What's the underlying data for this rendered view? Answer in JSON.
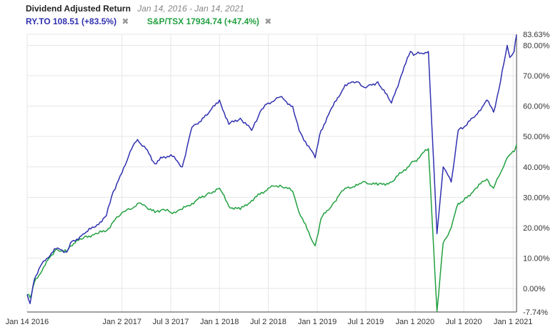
{
  "header": {
    "title": "Dividend Adjusted Return",
    "date_range": "Jan 14, 2016 - Jan 14, 2021",
    "legend": [
      {
        "label": "RY.TO 108.51 (+83.5%)",
        "color": "#3030b0",
        "remove_icon": "close-icon"
      },
      {
        "label": "S&P/TSX 17934.74 (+47.4%)",
        "color": "#22a040",
        "remove_icon": "close-icon"
      }
    ],
    "remove_glyph": "✖"
  },
  "chart_data": {
    "type": "line",
    "x_tick_labels": [
      "Jan 14 2016",
      "Jan 2 2017",
      "Jul 3 2017",
      "Jan 1 2018",
      "Jul 2 2018",
      "Jan 1 2019",
      "Jul 1 2019",
      "Jan 1 2020",
      "Jul 1 2020",
      "Jan 1 2021"
    ],
    "x_tick_dates": [
      "2016-01-14",
      "2017-01-02",
      "2017-07-03",
      "2018-01-01",
      "2018-07-02",
      "2019-01-01",
      "2019-07-01",
      "2020-01-01",
      "2020-07-01",
      "2021-01-01"
    ],
    "x_range": [
      "2016-01-14",
      "2021-01-14"
    ],
    "y_tick_labels": [
      "83.63%",
      "80.00%",
      "70.00%",
      "60.00%",
      "50.00%",
      "40.00%",
      "30.00%",
      "20.00%",
      "10.00%",
      "0.00%",
      "-7.74%"
    ],
    "y_tick_values": [
      83.63,
      80,
      70,
      60,
      50,
      40,
      30,
      20,
      10,
      0,
      -7.74
    ],
    "ylim": [
      -7.74,
      83.63
    ],
    "y_unit": "%",
    "grid": true,
    "series": [
      {
        "name": "RY.TO",
        "color": "#3030b0",
        "points": [
          [
            "2016-01-14",
            -2
          ],
          [
            "2016-01-25",
            -5
          ],
          [
            "2016-02-10",
            3
          ],
          [
            "2016-03-15",
            9
          ],
          [
            "2016-05-01",
            13
          ],
          [
            "2016-06-10",
            12
          ],
          [
            "2016-06-24",
            15
          ],
          [
            "2016-08-15",
            18
          ],
          [
            "2016-10-01",
            21
          ],
          [
            "2016-11-05",
            24
          ],
          [
            "2016-12-01",
            32
          ],
          [
            "2017-01-02",
            38
          ],
          [
            "2017-02-01",
            45
          ],
          [
            "2017-03-01",
            49
          ],
          [
            "2017-04-01",
            46
          ],
          [
            "2017-05-05",
            41
          ],
          [
            "2017-06-01",
            43
          ],
          [
            "2017-07-03",
            44
          ],
          [
            "2017-08-15",
            40
          ],
          [
            "2017-09-20",
            53
          ],
          [
            "2017-11-15",
            57
          ],
          [
            "2018-01-01",
            62
          ],
          [
            "2018-02-05",
            54
          ],
          [
            "2018-03-20",
            56
          ],
          [
            "2018-05-01",
            52
          ],
          [
            "2018-06-01",
            58
          ],
          [
            "2018-07-02",
            61
          ],
          [
            "2018-08-15",
            63
          ],
          [
            "2018-10-01",
            60
          ],
          [
            "2018-10-25",
            52
          ],
          [
            "2018-12-24",
            43
          ],
          [
            "2019-01-15",
            52
          ],
          [
            "2019-03-01",
            60
          ],
          [
            "2019-04-15",
            67
          ],
          [
            "2019-06-01",
            68
          ],
          [
            "2019-07-01",
            66
          ],
          [
            "2019-08-15",
            68
          ],
          [
            "2019-10-05",
            61
          ],
          [
            "2019-11-10",
            70
          ],
          [
            "2019-12-15",
            78
          ],
          [
            "2020-01-01",
            77
          ],
          [
            "2020-02-20",
            78
          ],
          [
            "2020-03-23",
            18
          ],
          [
            "2020-04-15",
            40
          ],
          [
            "2020-05-15",
            35
          ],
          [
            "2020-06-10",
            52
          ],
          [
            "2020-07-01",
            53
          ],
          [
            "2020-08-15",
            57
          ],
          [
            "2020-09-25",
            62
          ],
          [
            "2020-10-20",
            58
          ],
          [
            "2020-11-15",
            68
          ],
          [
            "2020-12-10",
            80
          ],
          [
            "2020-12-20",
            76
          ],
          [
            "2021-01-05",
            78
          ],
          [
            "2021-01-14",
            83.5
          ]
        ]
      },
      {
        "name": "S&P/TSX",
        "color": "#22a040",
        "points": [
          [
            "2016-01-14",
            -2
          ],
          [
            "2016-01-25",
            -3
          ],
          [
            "2016-02-10",
            2
          ],
          [
            "2016-03-15",
            7
          ],
          [
            "2016-05-01",
            13
          ],
          [
            "2016-06-10",
            12
          ],
          [
            "2016-06-24",
            14
          ],
          [
            "2016-08-15",
            17
          ],
          [
            "2016-10-01",
            18
          ],
          [
            "2016-11-05",
            19
          ],
          [
            "2016-12-01",
            22
          ],
          [
            "2017-01-02",
            25
          ],
          [
            "2017-02-01",
            26
          ],
          [
            "2017-03-01",
            28
          ],
          [
            "2017-04-01",
            27
          ],
          [
            "2017-05-05",
            25
          ],
          [
            "2017-06-01",
            26
          ],
          [
            "2017-07-03",
            25
          ],
          [
            "2017-08-15",
            26
          ],
          [
            "2017-09-20",
            28
          ],
          [
            "2017-11-15",
            31
          ],
          [
            "2018-01-01",
            33
          ],
          [
            "2018-02-05",
            27
          ],
          [
            "2018-03-20",
            26
          ],
          [
            "2018-05-01",
            29
          ],
          [
            "2018-06-01",
            31
          ],
          [
            "2018-07-02",
            33
          ],
          [
            "2018-08-15",
            34
          ],
          [
            "2018-10-01",
            32
          ],
          [
            "2018-10-25",
            25
          ],
          [
            "2018-12-24",
            14
          ],
          [
            "2019-01-15",
            23
          ],
          [
            "2019-03-01",
            28
          ],
          [
            "2019-04-15",
            33
          ],
          [
            "2019-06-01",
            34
          ],
          [
            "2019-07-01",
            35
          ],
          [
            "2019-08-15",
            34
          ],
          [
            "2019-10-05",
            35
          ],
          [
            "2019-11-10",
            38
          ],
          [
            "2019-12-15",
            41
          ],
          [
            "2020-01-01",
            42
          ],
          [
            "2020-02-20",
            46
          ],
          [
            "2020-03-23",
            -7.5
          ],
          [
            "2020-04-15",
            15
          ],
          [
            "2020-05-15",
            20
          ],
          [
            "2020-06-10",
            28
          ],
          [
            "2020-07-01",
            29
          ],
          [
            "2020-08-15",
            33
          ],
          [
            "2020-09-25",
            36
          ],
          [
            "2020-10-20",
            33
          ],
          [
            "2020-11-15",
            38
          ],
          [
            "2020-12-10",
            43
          ],
          [
            "2020-12-20",
            44
          ],
          [
            "2021-01-05",
            45
          ],
          [
            "2021-01-14",
            47.4
          ]
        ]
      }
    ]
  }
}
